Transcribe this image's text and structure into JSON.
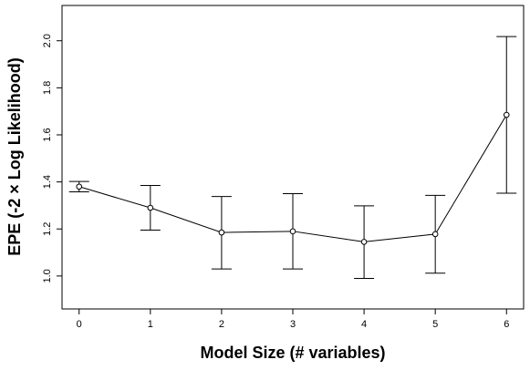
{
  "chart_data": {
    "type": "line",
    "title": "",
    "xlabel": "Model Size (# variables)",
    "ylabel": "EPE (-2 × Log Likelihood)",
    "xlim": [
      -0.24,
      6.24
    ],
    "ylim": [
      0.86,
      2.15
    ],
    "x_ticks": [
      "0",
      "1",
      "2",
      "3",
      "4",
      "5",
      "6"
    ],
    "y_ticks": [
      "1.0",
      "1.2",
      "1.4",
      "1.6",
      "1.8",
      "2.0"
    ],
    "grid": false,
    "series": [
      {
        "x": [
          0,
          1,
          2,
          3,
          4,
          5,
          6
        ],
        "values": [
          1.38,
          1.29,
          1.185,
          1.19,
          1.145,
          1.178,
          1.685
        ],
        "lower": [
          1.358,
          1.195,
          1.03,
          1.03,
          0.99,
          1.012,
          1.352
        ],
        "upper": [
          1.402,
          1.385,
          1.338,
          1.35,
          1.298,
          1.343,
          2.018
        ]
      }
    ]
  }
}
